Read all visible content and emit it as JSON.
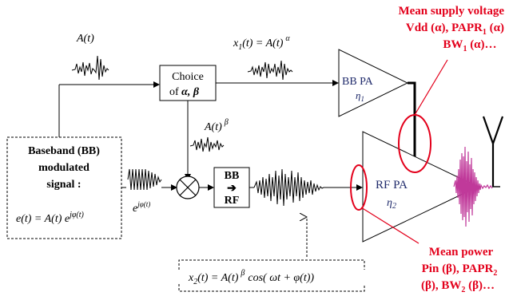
{
  "signals": {
    "a_t": "A(t)",
    "x1": "x",
    "x1_sub": "1",
    "x1_rest": "(t) = A(t)",
    "x1_exp": "α",
    "a_beta": "A(t)",
    "a_beta_exp": "β",
    "e_phi": "e",
    "e_phi_exp": "jφ(t)",
    "x2": "x",
    "x2_sub": "2",
    "x2_rest": "(t) = A(t)",
    "x2_exp": "β",
    "x2_tail": "cos( ωt + φ(t))"
  },
  "blocks": {
    "choice_line1": "Choice",
    "choice_line2a": "of",
    "choice_line2b": "α, β",
    "bbrf_top": "BB",
    "bbrf_bottom": "RF",
    "bb_pa_label": "BB PA",
    "bb_pa_eta": "η",
    "bb_pa_eta_sub": "1",
    "rf_pa_label": "RF PA",
    "rf_pa_eta": "η",
    "rf_pa_eta_sub": "2"
  },
  "baseband": {
    "line1": "Baseband (BB)",
    "line2": "modulated",
    "line3": "signal :",
    "formula_left": "e(t) = A(t) e",
    "formula_exp": "jφ(t)"
  },
  "annotations": {
    "supply": {
      "line1": "Mean supply voltage",
      "line2a": "Vdd (α), PAPR",
      "line2_sub": "1",
      "line2b": " (α)",
      "line3a": "BW",
      "line3_sub": "1",
      "line3b": " (α)…"
    },
    "power": {
      "line1": "Mean power",
      "line2a": "Pin (β), PAPR",
      "line2_sub": "2",
      "line3": "(β), BW",
      "line3_sub": "2",
      "line3b": " (β)…"
    }
  },
  "colors": {
    "annotation": "#e3001b",
    "output_signal": "#c0399a",
    "lines": "#000000"
  }
}
